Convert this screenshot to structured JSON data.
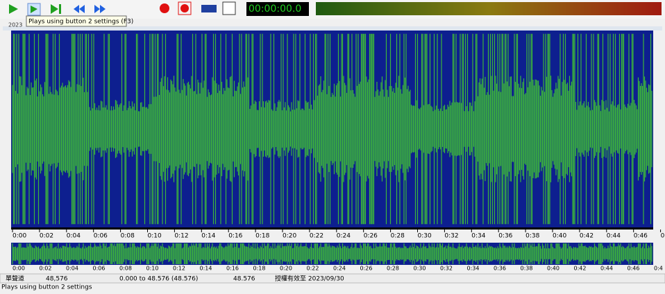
{
  "toolbar": {
    "timer": "00:00:00.0",
    "tooltip": "Plays using button 2 settings (F3)"
  },
  "window": {
    "title": "2023"
  },
  "ruler": {
    "labels": [
      "0:00",
      "0:02",
      "0:04",
      "0:06",
      "0:08",
      "0:10",
      "0:12",
      "0:14",
      "0:16",
      "0:18",
      "0:20",
      "0:22",
      "0:24",
      "0:26",
      "0:28",
      "0:30",
      "0:32",
      "0:34",
      "0:36",
      "0:38",
      "0:40",
      "0:42",
      "0:44",
      "0:46",
      "0:4"
    ]
  },
  "status": {
    "channel": "單聲道",
    "length": "48,576",
    "selection": "0.000 to 48.576 (48.576)",
    "position": "48.576",
    "license": "授權有效至 2023/09/30"
  },
  "hint": "Plays using button 2 settings"
}
